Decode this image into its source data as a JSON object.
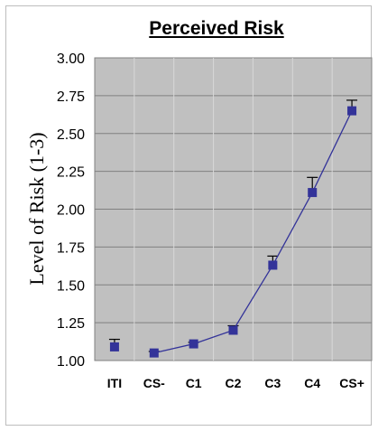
{
  "chart_data": {
    "type": "line",
    "title": "Perceived Risk",
    "ylabel": "Level of Risk (1-3)",
    "xlabel": "",
    "categories": [
      "ITI",
      "CS-",
      "C1",
      "C2",
      "C3",
      "C4",
      "CS+"
    ],
    "series": [
      {
        "values": [
          1.09,
          1.05,
          1.11,
          1.2,
          1.63,
          2.11,
          2.65
        ],
        "error_upper": [
          1.14,
          1.06,
          1.12,
          1.23,
          1.69,
          2.21,
          2.72
        ],
        "connected_from_index": 1
      }
    ],
    "ylim": [
      1.0,
      3.0
    ],
    "yticks": [
      "1.00",
      "1.25",
      "1.50",
      "1.75",
      "2.00",
      "2.25",
      "2.50",
      "2.75",
      "3.00"
    ],
    "ytick_values": [
      1.0,
      1.25,
      1.5,
      1.75,
      2.0,
      2.25,
      2.5,
      2.75,
      3.0
    ],
    "grid": true,
    "legend": "none",
    "colors": {
      "plot_background": "#c0c0c0",
      "gridline": "#808080",
      "series": "#333399",
      "error_bar": "#000000"
    }
  }
}
